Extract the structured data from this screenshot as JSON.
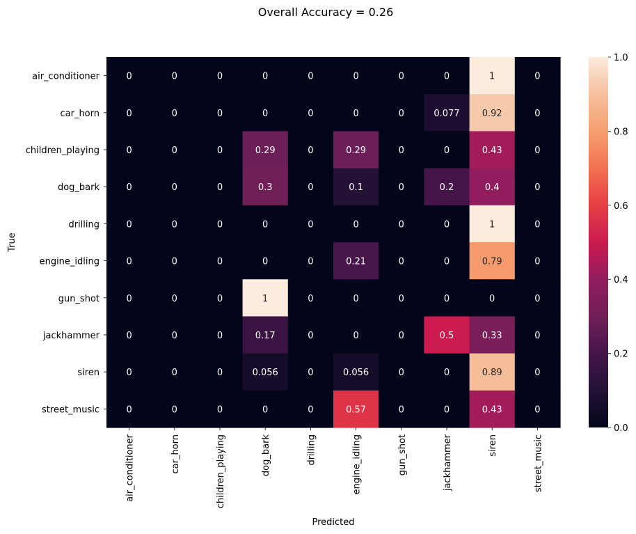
{
  "chart_data": {
    "type": "heatmap",
    "title": "Overall Accuracy = 0.26",
    "xlabel": "Predicted",
    "ylabel": "True",
    "x_categories": [
      "air_conditioner",
      "car_horn",
      "children_playing",
      "dog_bark",
      "drilling",
      "engine_idling",
      "gun_shot",
      "jackhammer",
      "siren",
      "street_music"
    ],
    "y_categories": [
      "air_conditioner",
      "car_horn",
      "children_playing",
      "dog_bark",
      "drilling",
      "engine_idling",
      "gun_shot",
      "jackhammer",
      "siren",
      "street_music"
    ],
    "values": [
      [
        0,
        0,
        0,
        0,
        0,
        0,
        0,
        0,
        1,
        0
      ],
      [
        0,
        0,
        0,
        0,
        0,
        0,
        0,
        0.077,
        0.92,
        0
      ],
      [
        0,
        0,
        0,
        0.29,
        0,
        0.29,
        0,
        0,
        0.43,
        0
      ],
      [
        0,
        0,
        0,
        0.3,
        0,
        0.1,
        0,
        0.2,
        0.4,
        0
      ],
      [
        0,
        0,
        0,
        0,
        0,
        0,
        0,
        0,
        1,
        0
      ],
      [
        0,
        0,
        0,
        0,
        0,
        0.21,
        0,
        0,
        0.79,
        0
      ],
      [
        0,
        0,
        0,
        1,
        0,
        0,
        0,
        0,
        0,
        0
      ],
      [
        0,
        0,
        0,
        0.17,
        0,
        0,
        0,
        0.5,
        0.33,
        0
      ],
      [
        0,
        0,
        0,
        0.056,
        0,
        0.056,
        0,
        0,
        0.89,
        0
      ],
      [
        0,
        0,
        0,
        0,
        0,
        0.57,
        0,
        0,
        0.43,
        0
      ]
    ],
    "colorbar": {
      "min": 0.0,
      "max": 1.0,
      "ticks": [
        "0.0",
        "0.2",
        "0.4",
        "0.6",
        "0.8",
        "1.0"
      ],
      "colormap": "rocket"
    },
    "grid": false
  }
}
